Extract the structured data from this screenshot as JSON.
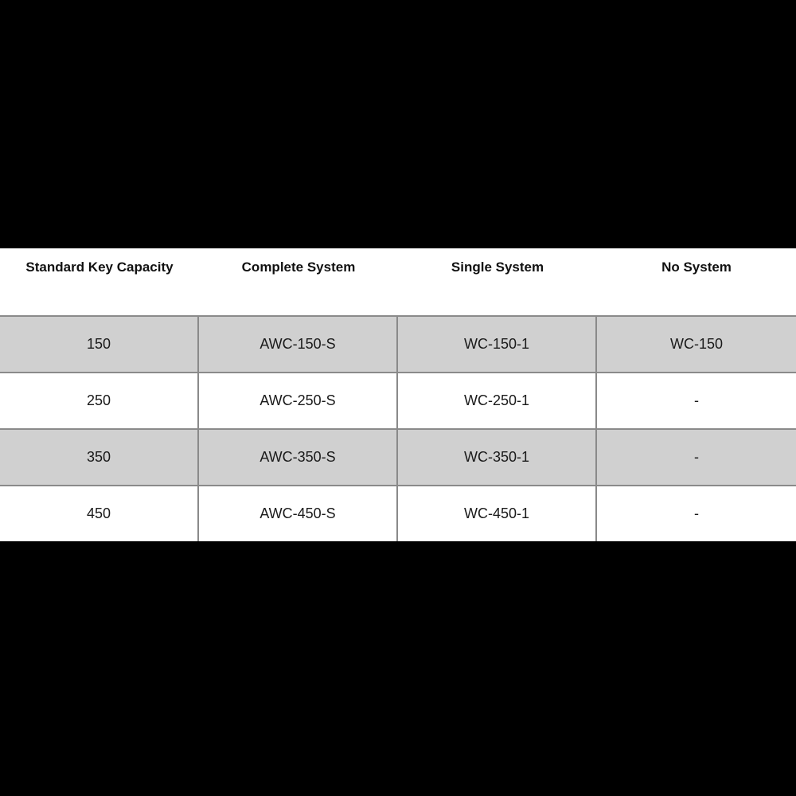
{
  "colors": {
    "background": "#000000",
    "band_background": "#ffffff",
    "row_shaded": "#d0d0d0",
    "row_plain": "#ffffff",
    "border": "#8a8a8a",
    "header_text": "#111111",
    "cell_text": "#1a1a1a"
  },
  "table": {
    "columns": [
      {
        "label": "Standard Key Capacity"
      },
      {
        "label": "Complete System"
      },
      {
        "label": "Single System"
      },
      {
        "label": "No System"
      }
    ],
    "rows": [
      {
        "cells": [
          "150",
          "AWC-150-S",
          "WC-150-1",
          "WC-150"
        ]
      },
      {
        "cells": [
          "250",
          "AWC-250-S",
          "WC-250-1",
          "-"
        ]
      },
      {
        "cells": [
          "350",
          "AWC-350-S",
          "WC-350-1",
          "-"
        ]
      },
      {
        "cells": [
          "450",
          "AWC-450-S",
          "WC-450-1",
          "-"
        ]
      }
    ]
  }
}
